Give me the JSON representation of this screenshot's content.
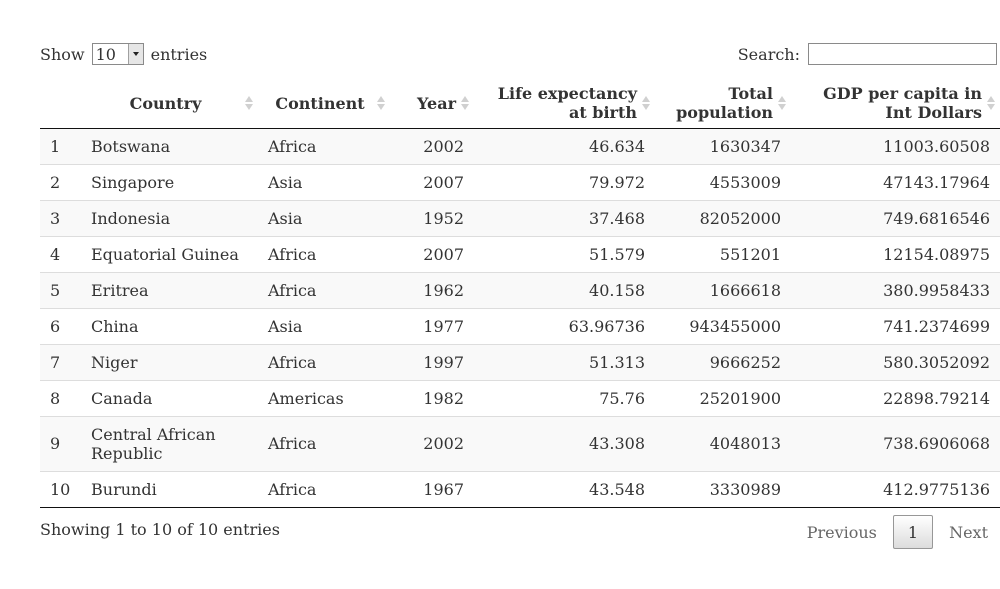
{
  "length_menu": {
    "show_label": "Show",
    "selected": "10",
    "entries_label": "entries"
  },
  "search": {
    "label": "Search:",
    "value": "",
    "placeholder": ""
  },
  "table": {
    "columns": [
      {
        "line1": "",
        "line2": ""
      },
      {
        "line1": "Country",
        "line2": ""
      },
      {
        "line1": "Continent",
        "line2": ""
      },
      {
        "line1": "Year",
        "line2": ""
      },
      {
        "line1": "Life expectancy",
        "line2": "at birth"
      },
      {
        "line1": "Total",
        "line2": "population"
      },
      {
        "line1": "GDP per capita in",
        "line2": "Int Dollars"
      }
    ],
    "rows": [
      {
        "idx": "1",
        "country": "Botswana",
        "continent": "Africa",
        "year": "2002",
        "life_exp": "46.634",
        "population": "1630347",
        "gdp": "11003.60508"
      },
      {
        "idx": "2",
        "country": "Singapore",
        "continent": "Asia",
        "year": "2007",
        "life_exp": "79.972",
        "population": "4553009",
        "gdp": "47143.17964"
      },
      {
        "idx": "3",
        "country": "Indonesia",
        "continent": "Asia",
        "year": "1952",
        "life_exp": "37.468",
        "population": "82052000",
        "gdp": "749.6816546"
      },
      {
        "idx": "4",
        "country": "Equatorial Guinea",
        "continent": "Africa",
        "year": "2007",
        "life_exp": "51.579",
        "population": "551201",
        "gdp": "12154.08975"
      },
      {
        "idx": "5",
        "country": "Eritrea",
        "continent": "Africa",
        "year": "1962",
        "life_exp": "40.158",
        "population": "1666618",
        "gdp": "380.9958433"
      },
      {
        "idx": "6",
        "country": "China",
        "continent": "Asia",
        "year": "1977",
        "life_exp": "63.96736",
        "population": "943455000",
        "gdp": "741.2374699"
      },
      {
        "idx": "7",
        "country": "Niger",
        "continent": "Africa",
        "year": "1997",
        "life_exp": "51.313",
        "population": "9666252",
        "gdp": "580.3052092"
      },
      {
        "idx": "8",
        "country": "Canada",
        "continent": "Americas",
        "year": "1982",
        "life_exp": "75.76",
        "population": "25201900",
        "gdp": "22898.79214"
      },
      {
        "idx": "9",
        "country": "Central African Republic",
        "continent": "Africa",
        "year": "2002",
        "life_exp": "43.308",
        "population": "4048013",
        "gdp": "738.6906068"
      },
      {
        "idx": "10",
        "country": "Burundi",
        "continent": "Africa",
        "year": "1967",
        "life_exp": "43.548",
        "population": "3330989",
        "gdp": "412.9775136"
      }
    ]
  },
  "footer": {
    "info": "Showing 1 to 10 of 10 entries",
    "previous": "Previous",
    "current_page": "1",
    "next": "Next"
  }
}
